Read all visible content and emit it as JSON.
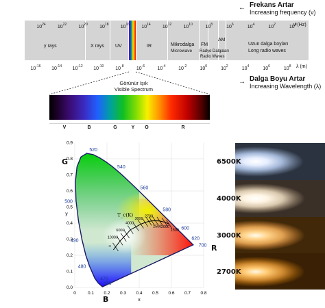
{
  "header": {
    "freq_title": "Frekans Artar",
    "freq_sub": "Increasing frequency (ν)",
    "wave_title": "Dalga Boyu Artar",
    "wave_sub": "Increasing Wavelength (λ)"
  },
  "em": {
    "freq_unit": "ν (Hz)",
    "wave_unit": "λ (m)",
    "freq_ticks": [
      "10^24",
      "10^22",
      "10^20",
      "10^18",
      "10^16",
      "10^14",
      "10^12",
      "10^10",
      "10^8",
      "10^6",
      "10^4",
      "10^2",
      "10^0"
    ],
    "wave_ticks": [
      "10^-16",
      "10^-14",
      "10^-12",
      "10^-10",
      "10^-8",
      "10^-6",
      "10^-4",
      "10^-2",
      "10^0",
      "10^2",
      "10^4",
      "10^6",
      "10^8"
    ],
    "regions": {
      "gamma": "γ rays",
      "xray": "X rays",
      "uv": "UV",
      "ir": "IR",
      "micro_tr": "Mikrodalga",
      "micro_en": "Microwave",
      "fm": "FM",
      "radio_tr": "Radyo Dalgaları",
      "radio_en": "Radio Waves",
      "am": "AM",
      "long_tr": "Uzun dalga boyları",
      "long_en": "Long radio waves"
    }
  },
  "visible": {
    "title_tr": "Görünür Işık",
    "title_en": "Visible Spectrum",
    "labels": [
      "V",
      "B",
      "G",
      "Y",
      "O",
      "R"
    ]
  },
  "cie": {
    "x_axis": "x",
    "y_axis": "y",
    "corner_g": "G",
    "corner_b": "B",
    "corner_r": "R",
    "x_ticks": [
      "0",
      "0.1",
      "0.2",
      "0.3",
      "0.4",
      "0.5",
      "0.6",
      "0.7",
      "0.8"
    ],
    "y_ticks": [
      "0.0",
      "0.1",
      "0.2",
      "0.3",
      "0.4",
      "0.5",
      "0.6",
      "0.7",
      "0.8",
      "0.9"
    ],
    "locus_labels": [
      {
        "nm": "460",
        "x": 0.144,
        "y": 0.03
      },
      {
        "nm": "470",
        "x": 0.124,
        "y": 0.058
      },
      {
        "nm": "480",
        "x": 0.091,
        "y": 0.133
      },
      {
        "nm": "490",
        "x": 0.045,
        "y": 0.295
      },
      {
        "nm": "500",
        "x": 0.008,
        "y": 0.538
      },
      {
        "nm": "520",
        "x": 0.074,
        "y": 0.834
      },
      {
        "nm": "540",
        "x": 0.23,
        "y": 0.754
      },
      {
        "nm": "560",
        "x": 0.373,
        "y": 0.624
      },
      {
        "nm": "580",
        "x": 0.512,
        "y": 0.487
      },
      {
        "nm": "600",
        "x": 0.627,
        "y": 0.373
      },
      {
        "nm": "620",
        "x": 0.691,
        "y": 0.308
      },
      {
        "nm": "700",
        "x": 0.735,
        "y": 0.265
      }
    ],
    "tc_label": "T_c(K)",
    "cct_labels": [
      {
        "k": "∞",
        "x": 0.24,
        "y": 0.234
      },
      {
        "k": "10000",
        "x": 0.281,
        "y": 0.288
      },
      {
        "k": "6000",
        "x": 0.322,
        "y": 0.332
      },
      {
        "k": "4000",
        "x": 0.38,
        "y": 0.377
      },
      {
        "k": "3000",
        "x": 0.437,
        "y": 0.404
      },
      {
        "k": "2500",
        "x": 0.477,
        "y": 0.414
      },
      {
        "k": "2000",
        "x": 0.527,
        "y": 0.413
      },
      {
        "k": "1500",
        "x": 0.586,
        "y": 0.393
      }
    ],
    "top_labels": [
      {
        "k": "2700",
        "x": 0.46,
        "y": 0.411
      }
    ]
  },
  "temps": [
    "6500K",
    "4000K",
    "3000K",
    "2700K"
  ]
}
